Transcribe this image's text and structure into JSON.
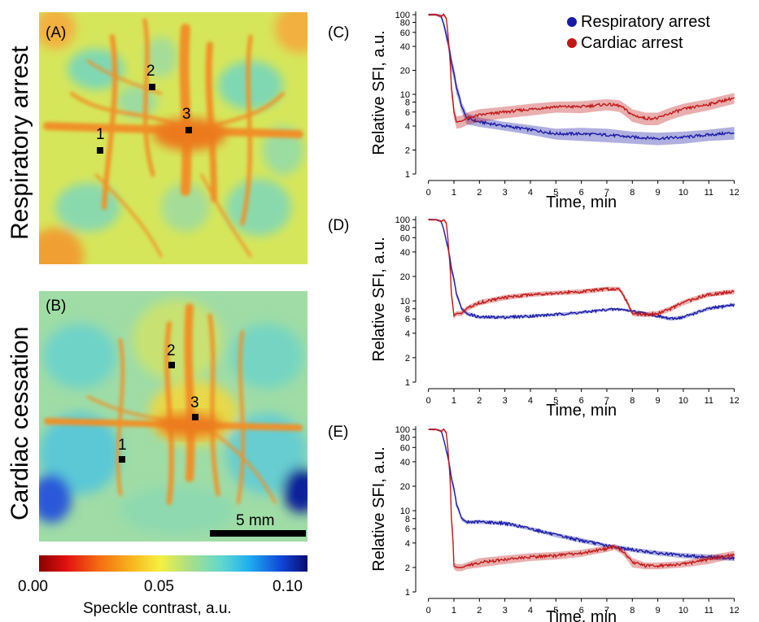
{
  "figure": {
    "row_labels": [
      "Respiratory arrest",
      "Cardiac cessation"
    ],
    "image_panels": [
      {
        "tag": "(A)",
        "points": [
          "1",
          "2",
          "3"
        ]
      },
      {
        "tag": "(B)",
        "points": [
          "1",
          "2",
          "3"
        ],
        "scale_bar": "5 mm"
      }
    ],
    "colorbar": {
      "ticks": [
        "0.00",
        "0.05",
        "0.10"
      ],
      "label": "Speckle contrast, a.u."
    }
  },
  "legend": {
    "items": [
      {
        "label": "Respiratory arrest",
        "color": "#1a1aa6"
      },
      {
        "label": "Cardiac arrest",
        "color": "#c01818"
      }
    ]
  },
  "chart_data": [
    {
      "type": "line",
      "panel": "(C)",
      "xlabel": "Time, min",
      "ylabel": "Relative SFI, a.u.",
      "xlim": [
        -0.5,
        12.3
      ],
      "ylim": [
        1,
        110
      ],
      "yscale": "log",
      "xticks": [
        "0",
        "1",
        "2",
        "3",
        "4",
        "5",
        "6",
        "7",
        "8",
        "9",
        "10",
        "11",
        "12"
      ],
      "yticks": [
        1,
        2,
        4,
        6,
        8,
        10,
        20,
        40,
        60,
        80,
        100
      ],
      "shaded_error": true,
      "series": [
        {
          "name": "Respiratory arrest",
          "color": "#1a1aa6",
          "x": [
            0,
            0.3,
            0.5,
            0.7,
            0.9,
            1.1,
            1.3,
            1.5,
            2,
            3,
            4,
            5,
            6,
            7,
            8,
            9,
            10,
            11,
            12
          ],
          "y": [
            100,
            100,
            95,
            55,
            25,
            12,
            7,
            5,
            4.5,
            4,
            3.6,
            3.2,
            3.2,
            3.1,
            2.9,
            2.8,
            2.9,
            3.1,
            3.3
          ],
          "err": [
            3,
            3,
            5,
            8,
            5,
            2,
            1,
            0.8,
            0.6,
            0.5,
            0.5,
            0.5,
            0.6,
            0.6,
            0.5,
            0.5,
            0.5,
            0.5,
            0.6
          ]
        },
        {
          "name": "Cardiac arrest",
          "color": "#c01818",
          "x": [
            0,
            0.3,
            0.5,
            0.6,
            0.7,
            0.8,
            0.9,
            1.0,
            1.1,
            1.3,
            1.5,
            2,
            3,
            4,
            5,
            6,
            7,
            7.5,
            8,
            8.5,
            9,
            9.5,
            10,
            11,
            12
          ],
          "y": [
            100,
            100,
            95,
            100,
            90,
            40,
            12,
            6,
            4.5,
            4.6,
            5,
            5.5,
            6,
            6.5,
            7,
            7,
            7.5,
            7.2,
            5.5,
            5,
            5,
            5.8,
            6.5,
            7.5,
            9
          ],
          "err": [
            3,
            3,
            4,
            4,
            5,
            5,
            3,
            1,
            0.8,
            0.8,
            0.9,
            1,
            1,
            1.1,
            1.1,
            1.2,
            1.2,
            1.2,
            1,
            0.9,
            0.9,
            1,
            1.1,
            1.2,
            1.4
          ]
        }
      ]
    },
    {
      "type": "line",
      "panel": "(D)",
      "xlabel": "Time, min",
      "ylabel": "Relative SFI, a.u.",
      "xlim": [
        -0.5,
        12.3
      ],
      "ylim": [
        1,
        110
      ],
      "yscale": "log",
      "xticks": [
        "0",
        "1",
        "2",
        "3",
        "4",
        "5",
        "6",
        "7",
        "8",
        "9",
        "10",
        "11",
        "12"
      ],
      "yticks": [
        1,
        2,
        4,
        6,
        8,
        10,
        20,
        40,
        60,
        80,
        100
      ],
      "shaded_error": true,
      "series": [
        {
          "name": "Respiratory arrest",
          "color": "#1a1aa6",
          "x": [
            0,
            0.3,
            0.5,
            0.7,
            0.9,
            1.1,
            1.3,
            1.5,
            2,
            3,
            4,
            5,
            6,
            7,
            7.5,
            8,
            8.5,
            9,
            9.5,
            10,
            11,
            12
          ],
          "y": [
            100,
            100,
            95,
            55,
            25,
            12,
            8,
            7,
            6.3,
            6.3,
            6.5,
            6.8,
            7.2,
            7.8,
            7.9,
            7.5,
            7,
            6.5,
            6,
            6.3,
            8,
            9
          ],
          "err": [
            2,
            2,
            3,
            4,
            3,
            1,
            0.5,
            0.4,
            0.3,
            0.3,
            0.3,
            0.3,
            0.3,
            0.3,
            0.3,
            0.3,
            0.3,
            0.3,
            0.3,
            0.3,
            0.4,
            0.4
          ]
        },
        {
          "name": "Cardiac arrest",
          "color": "#c01818",
          "x": [
            0,
            0.3,
            0.5,
            0.6,
            0.7,
            0.8,
            0.9,
            1.0,
            1.1,
            1.3,
            1.5,
            2,
            3,
            4,
            5,
            6,
            7,
            7.5,
            7.7,
            8,
            8.5,
            9,
            9.5,
            10,
            11,
            12
          ],
          "y": [
            100,
            100,
            95,
            100,
            90,
            40,
            12,
            6.5,
            7,
            7,
            8,
            9.5,
            11,
            12,
            12.5,
            13,
            14,
            14,
            11,
            7,
            6.8,
            7,
            8,
            9.5,
            12,
            13
          ],
          "err": [
            2,
            2,
            3,
            3,
            4,
            4,
            2,
            0.5,
            0.5,
            0.5,
            0.6,
            0.7,
            0.8,
            0.8,
            0.8,
            0.9,
            0.9,
            0.9,
            0.8,
            0.5,
            0.5,
            0.5,
            0.6,
            0.7,
            0.8,
            0.9
          ]
        }
      ]
    },
    {
      "type": "line",
      "panel": "(E)",
      "xlabel": "Time, min",
      "ylabel": "Relative SFI, a.u.",
      "xlim": [
        -0.5,
        12.3
      ],
      "ylim": [
        1,
        110
      ],
      "yscale": "log",
      "xticks": [
        "0",
        "1",
        "2",
        "3",
        "4",
        "5",
        "6",
        "7",
        "8",
        "9",
        "10",
        "11",
        "12"
      ],
      "yticks": [
        1,
        2,
        4,
        6,
        8,
        10,
        20,
        40,
        60,
        80,
        100
      ],
      "shaded_error": true,
      "series": [
        {
          "name": "Respiratory arrest",
          "color": "#1a1aa6",
          "x": [
            0,
            0.3,
            0.5,
            0.7,
            0.9,
            1.1,
            1.3,
            1.5,
            2,
            3,
            4,
            5,
            6,
            7,
            8,
            9,
            10,
            11,
            12
          ],
          "y": [
            100,
            100,
            95,
            55,
            25,
            12,
            8,
            7.2,
            7.3,
            7,
            6,
            5,
            4.3,
            3.7,
            3.3,
            3,
            2.8,
            2.7,
            2.6
          ],
          "err": [
            2,
            2,
            3,
            4,
            3,
            1,
            0.5,
            0.4,
            0.4,
            0.4,
            0.3,
            0.3,
            0.3,
            0.2,
            0.2,
            0.2,
            0.2,
            0.2,
            0.2
          ]
        },
        {
          "name": "Cardiac arrest",
          "color": "#c01818",
          "x": [
            0,
            0.3,
            0.5,
            0.6,
            0.7,
            0.8,
            0.9,
            1.0,
            1.1,
            1.3,
            1.5,
            2,
            3,
            4,
            5,
            6,
            7,
            7.3,
            7.6,
            8,
            8.5,
            9,
            10,
            11,
            12
          ],
          "y": [
            100,
            100,
            95,
            100,
            90,
            40,
            8,
            2.1,
            2.0,
            2.0,
            2.1,
            2.3,
            2.5,
            2.7,
            2.8,
            3,
            3.4,
            3.6,
            3.2,
            2.3,
            2.1,
            2.1,
            2.2,
            2.5,
            2.9
          ],
          "err": [
            2,
            2,
            3,
            3,
            4,
            4,
            2,
            0.2,
            0.2,
            0.2,
            0.2,
            0.3,
            0.3,
            0.3,
            0.3,
            0.3,
            0.3,
            0.3,
            0.3,
            0.3,
            0.2,
            0.2,
            0.2,
            0.3,
            0.3
          ]
        }
      ]
    }
  ]
}
